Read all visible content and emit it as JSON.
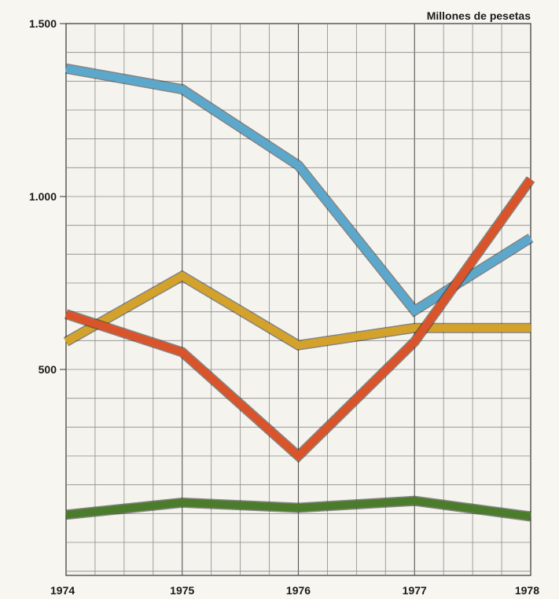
{
  "chart_data": {
    "type": "line",
    "title": "",
    "unit_label": "Millones de pesetas",
    "xlabel": "",
    "ylabel": "",
    "x": [
      "1974",
      "1975",
      "1976",
      "1977",
      "1978"
    ],
    "y_ticks": [
      {
        "value": 500,
        "label": "500"
      },
      {
        "value": 1000,
        "label": "1.000"
      },
      {
        "value": 1500,
        "label": "1.500"
      }
    ],
    "ylim": [
      0,
      1500
    ],
    "grid": true,
    "series": [
      {
        "color": "#5ba8cc",
        "values": [
          1370,
          1310,
          1090,
          670,
          880
        ]
      },
      {
        "color": "#d4a22a",
        "values": [
          580,
          770,
          570,
          620,
          620
        ]
      },
      {
        "color": "#d9542a",
        "values": [
          660,
          550,
          250,
          580,
          1050
        ]
      },
      {
        "color": "#4b7c2c",
        "values": [
          80,
          115,
          100,
          120,
          75
        ]
      }
    ]
  }
}
